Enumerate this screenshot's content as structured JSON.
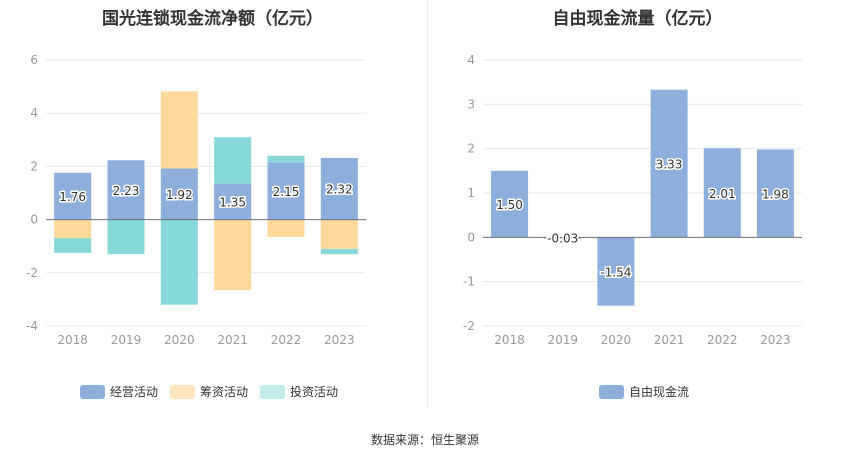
{
  "footer": {
    "source": "数据来源：恒生聚源"
  },
  "chart_data": [
    {
      "type": "bar",
      "stacked": true,
      "title": "国光连锁现金流净额（亿元）",
      "categories": [
        "2018",
        "2019",
        "2020",
        "2021",
        "2022",
        "2023"
      ],
      "ylim": [
        -4,
        6
      ],
      "yticks": [
        -4,
        -2,
        0,
        2,
        4,
        6
      ],
      "grid": true,
      "legend_position": "bottom",
      "series": [
        {
          "name": "经营活动",
          "color": "#8eaedb",
          "values": [
            1.76,
            2.23,
            1.92,
            1.35,
            2.15,
            2.32
          ],
          "labels": [
            "1.76",
            "2.23",
            "1.92",
            "1.35",
            "2.15",
            "2.32"
          ]
        },
        {
          "name": "筹资活动",
          "color": "#ffd99b",
          "values": [
            -0.7,
            0,
            2.9,
            -2.65,
            -0.65,
            -1.1
          ]
        },
        {
          "name": "投资活动",
          "color": "#87d9d9",
          "values": [
            -0.55,
            -1.3,
            -3.2,
            1.75,
            0.25,
            -0.2
          ]
        }
      ]
    },
    {
      "type": "bar",
      "title": "自由现金流量（亿元）",
      "categories": [
        "2018",
        "2019",
        "2020",
        "2021",
        "2022",
        "2023"
      ],
      "ylim": [
        -2,
        4
      ],
      "yticks": [
        -2,
        -1,
        0,
        1,
        2,
        3,
        4
      ],
      "grid": true,
      "legend_position": "bottom",
      "series": [
        {
          "name": "自由现金流",
          "color": "#8eaedb",
          "values": [
            1.5,
            -0.03,
            -1.54,
            3.33,
            2.01,
            1.98
          ],
          "labels": [
            "1.50",
            "-0.03",
            "-1.54",
            "3.33",
            "2.01",
            "1.98"
          ]
        }
      ]
    }
  ]
}
